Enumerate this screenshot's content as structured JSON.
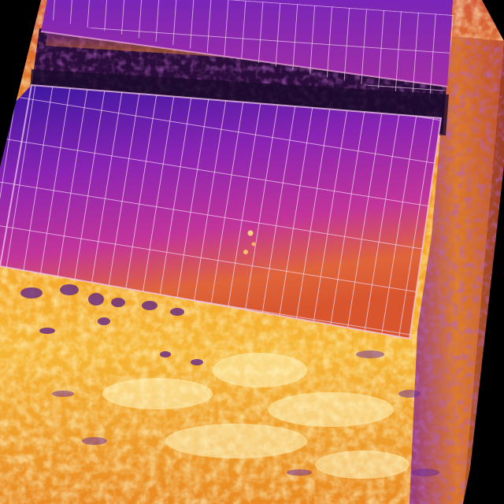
{
  "image": {
    "kind": "thermal-aerial",
    "palette": "ironbow",
    "subject": "solar-panel-arrays",
    "colors": {
      "background": "#000000",
      "cold": "#2a0a6e",
      "cool": "#5a1fb0",
      "mid": "#b02a9a",
      "warm": "#e0523a",
      "hot": "#f39a1c",
      "hottest": "#fff1a0",
      "grid_line": "#f2d2f0",
      "shadow": "#1a0a2a"
    },
    "panel_rows": 2
  }
}
